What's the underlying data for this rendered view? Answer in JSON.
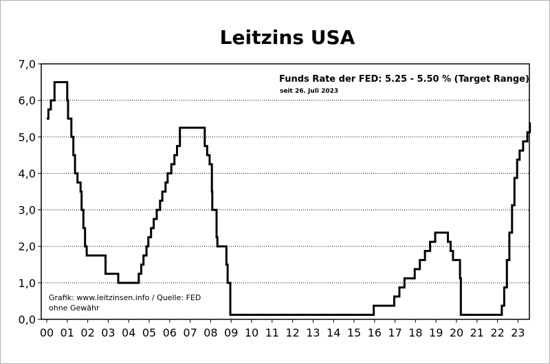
{
  "chart_data": {
    "type": "line",
    "title": "Leitzins USA",
    "annotation": "Funds Rate der FED: 5.25 -  5.50 % (Target Range)",
    "annotation_sub": "seit 26. Juli 2023",
    "credit_line1": "Grafik: www.leitzinsen.info / Quelle: FED",
    "credit_line2": "ohne Gewähr",
    "xlabel": "",
    "ylabel": "",
    "ylim": [
      0,
      7
    ],
    "xlim": [
      2000.0,
      2023.75
    ],
    "y_ticks": [
      "0,0",
      "1,0",
      "2,0",
      "3,0",
      "4,0",
      "5,0",
      "6,0",
      "7,0"
    ],
    "x_ticks": [
      "00",
      "01",
      "02",
      "03",
      "04",
      "05",
      "06",
      "07",
      "08",
      "09",
      "10",
      "11",
      "12",
      "13",
      "14",
      "15",
      "16",
      "17",
      "18",
      "19",
      "20",
      "21",
      "22",
      "23"
    ],
    "grid": "horizontal dotted",
    "line_color": "#000000",
    "series": [
      {
        "step": true,
        "points": [
          [
            2000.0,
            5.5
          ],
          [
            2000.08,
            5.75
          ],
          [
            2000.2,
            6.0
          ],
          [
            2000.38,
            6.5
          ],
          [
            2001.0,
            6.0
          ],
          [
            2001.04,
            5.5
          ],
          [
            2001.2,
            5.0
          ],
          [
            2001.3,
            4.5
          ],
          [
            2001.38,
            4.0
          ],
          [
            2001.5,
            3.75
          ],
          [
            2001.65,
            3.5
          ],
          [
            2001.7,
            3.0
          ],
          [
            2001.79,
            2.5
          ],
          [
            2001.87,
            2.0
          ],
          [
            2001.95,
            1.75
          ],
          [
            2002.87,
            1.25
          ],
          [
            2003.49,
            1.0
          ],
          [
            2004.49,
            1.25
          ],
          [
            2004.61,
            1.5
          ],
          [
            2004.72,
            1.75
          ],
          [
            2004.87,
            2.0
          ],
          [
            2004.96,
            2.25
          ],
          [
            2005.09,
            2.5
          ],
          [
            2005.22,
            2.75
          ],
          [
            2005.37,
            3.0
          ],
          [
            2005.53,
            3.25
          ],
          [
            2005.64,
            3.5
          ],
          [
            2005.8,
            3.75
          ],
          [
            2005.9,
            4.0
          ],
          [
            2006.08,
            4.25
          ],
          [
            2006.23,
            4.5
          ],
          [
            2006.36,
            4.75
          ],
          [
            2006.5,
            5.25
          ],
          [
            2007.71,
            4.75
          ],
          [
            2007.83,
            4.5
          ],
          [
            2007.95,
            4.25
          ],
          [
            2008.06,
            3.5
          ],
          [
            2008.08,
            3.0
          ],
          [
            2008.29,
            2.25
          ],
          [
            2008.33,
            2.0
          ],
          [
            2008.77,
            1.5
          ],
          [
            2008.83,
            1.0
          ],
          [
            2008.96,
            0.125
          ],
          [
            2015.96,
            0.375
          ],
          [
            2016.96,
            0.625
          ],
          [
            2017.21,
            0.875
          ],
          [
            2017.46,
            1.125
          ],
          [
            2017.96,
            1.375
          ],
          [
            2018.21,
            1.625
          ],
          [
            2018.46,
            1.875
          ],
          [
            2018.71,
            2.125
          ],
          [
            2018.96,
            2.375
          ],
          [
            2019.58,
            2.125
          ],
          [
            2019.71,
            1.875
          ],
          [
            2019.83,
            1.625
          ],
          [
            2020.17,
            1.125
          ],
          [
            2020.21,
            0.125
          ],
          [
            2022.21,
            0.375
          ],
          [
            2022.33,
            0.875
          ],
          [
            2022.46,
            1.625
          ],
          [
            2022.58,
            2.375
          ],
          [
            2022.71,
            3.125
          ],
          [
            2022.83,
            3.875
          ],
          [
            2022.96,
            4.375
          ],
          [
            2023.08,
            4.625
          ],
          [
            2023.25,
            4.875
          ],
          [
            2023.46,
            5.125
          ],
          [
            2023.58,
            5.375
          ],
          [
            2023.62,
            5.375
          ]
        ]
      }
    ]
  }
}
